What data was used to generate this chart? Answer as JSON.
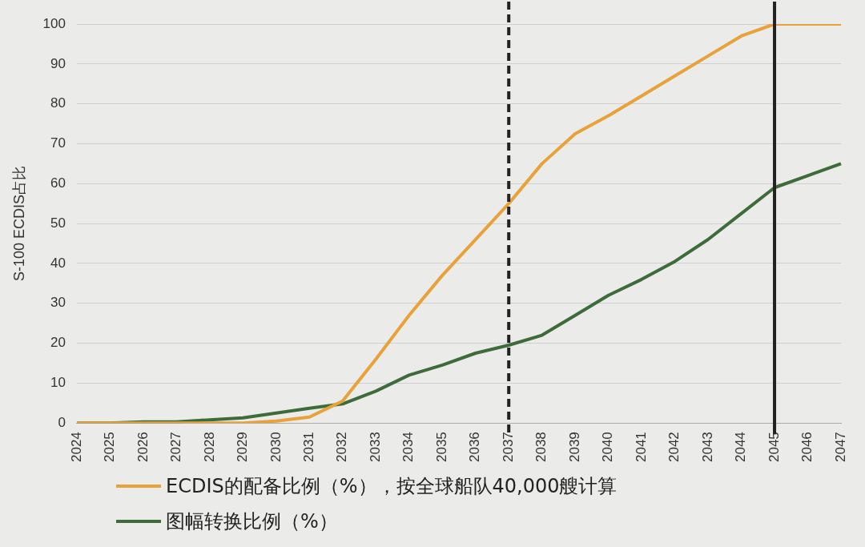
{
  "chart_data": {
    "type": "line",
    "ylabel": "S-100 ECDIS占比",
    "categories": [
      "2024",
      "2025",
      "2026",
      "2027",
      "2028",
      "2029",
      "2030",
      "2031",
      "2032",
      "2033",
      "2034",
      "2035",
      "2036",
      "2037",
      "2038",
      "2039",
      "2040",
      "2041",
      "2042",
      "2043",
      "2044",
      "2045",
      "2046",
      "2047"
    ],
    "series": [
      {
        "name": "ECDIS的配备比例（%），按全球船队40,000艘计算",
        "color": "#e8a23a",
        "values": [
          0,
          0,
          0,
          0,
          0,
          0,
          0.5,
          1.5,
          5.5,
          16,
          27,
          37,
          46,
          55,
          65,
          72.5,
          77,
          82,
          87,
          92,
          97,
          100,
          100,
          100
        ]
      },
      {
        "name": "图幅转换比例（%）",
        "color": "#3d6b3a",
        "values": [
          0,
          0,
          0.3,
          0.3,
          0.8,
          1.3,
          2.5,
          3.7,
          4.8,
          8,
          12,
          14.5,
          17.5,
          19.5,
          22,
          27,
          32,
          36,
          40.5,
          46,
          52.5,
          59,
          62,
          65
        ]
      }
    ],
    "ylim": [
      0,
      100
    ],
    "yticks": [
      0,
      10,
      20,
      30,
      40,
      50,
      60,
      70,
      80,
      90,
      100
    ],
    "grid": "y",
    "legend": "bottom",
    "marker": "none",
    "line_style": "solid",
    "ref_lines": [
      {
        "axis": "x",
        "value": "2037",
        "color": "#222222",
        "line_style": "dashed"
      },
      {
        "axis": "x",
        "value": "2045",
        "color": "#222222",
        "line_style": "solid"
      }
    ]
  }
}
